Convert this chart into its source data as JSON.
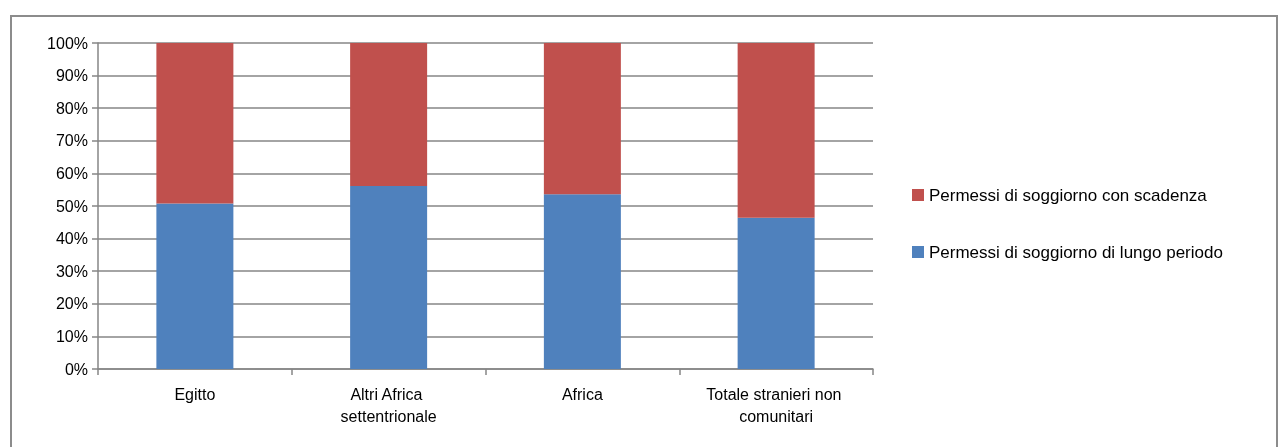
{
  "chart_data": {
    "type": "bar",
    "stacked": true,
    "categories": [
      "Egitto",
      "Altri Africa settentrionale",
      "Africa",
      "Totale stranieri non comunitari"
    ],
    "series": [
      {
        "name": "Permessi di soggiorno di lungo periodo",
        "color": "#4f81bd",
        "values": [
          50.8,
          56.1,
          53.6,
          46.4
        ]
      },
      {
        "name": "Permessi di soggiorno con scadenza",
        "color": "#c0504d",
        "values": [
          49.2,
          43.9,
          46.4,
          53.6
        ]
      }
    ],
    "ylim": [
      0,
      100
    ],
    "yticks": [
      {
        "value": 0,
        "label": "0%"
      },
      {
        "value": 10,
        "label": "10%"
      },
      {
        "value": 20,
        "label": "20%"
      },
      {
        "value": 30,
        "label": "30%"
      },
      {
        "value": 40,
        "label": "40%"
      },
      {
        "value": 50,
        "label": "50%"
      },
      {
        "value": 60,
        "label": "60%"
      },
      {
        "value": 70,
        "label": "70%"
      },
      {
        "value": 80,
        "label": "80%"
      },
      {
        "value": 90,
        "label": "90%"
      },
      {
        "value": 100,
        "label": "100%"
      }
    ],
    "grid": "y",
    "legend": "right"
  }
}
